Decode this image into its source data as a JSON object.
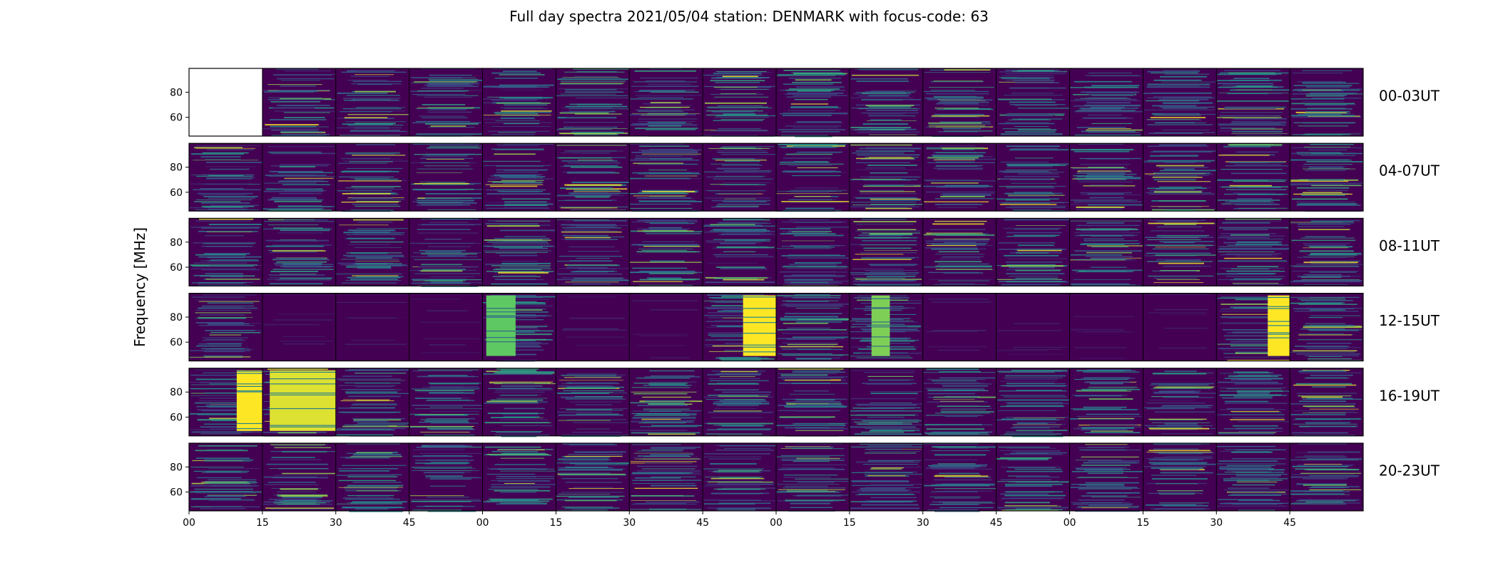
{
  "chart_data": {
    "type": "heatmap",
    "title": "Full day spectra 2021/05/04 station: DENMARK with focus-code: 63",
    "ylabel": "Frequency [MHz]",
    "xlabel": "",
    "ylim": [
      45,
      99
    ],
    "y_ticks": [
      "60",
      "80"
    ],
    "x_tick_labels": [
      "00",
      "15",
      "30",
      "45",
      "00",
      "15",
      "30",
      "45",
      "00",
      "15",
      "30",
      "45",
      "00",
      "15",
      "30",
      "45"
    ],
    "panels_per_row": 16,
    "panel_minutes": 15,
    "colormap": [
      "#440154",
      "#3b528b",
      "#21918c",
      "#5ec962",
      "#fde725"
    ],
    "rows": [
      {
        "label": "00-03UT",
        "empty_panels": [
          0
        ]
      },
      {
        "label": "04-07UT",
        "empty_panels": []
      },
      {
        "label": "08-11UT",
        "empty_panels": []
      },
      {
        "label": "12-15UT",
        "empty_panels": []
      },
      {
        "label": "16-19UT",
        "empty_panels": []
      },
      {
        "label": "20-23UT",
        "empty_panels": []
      }
    ],
    "bursts": [
      {
        "row": 3,
        "panel": 4,
        "start": 0.05,
        "end": 0.45,
        "intensity": 0.75
      },
      {
        "row": 3,
        "panel": 7,
        "start": 0.55,
        "end": 1.0,
        "intensity": 1.0
      },
      {
        "row": 3,
        "panel": 9,
        "start": 0.3,
        "end": 0.55,
        "intensity": 0.8
      },
      {
        "row": 3,
        "panel": 14,
        "start": 0.7,
        "end": 1.0,
        "intensity": 1.0
      },
      {
        "row": 4,
        "panel": 0,
        "start": 0.65,
        "end": 1.0,
        "intensity": 1.0
      },
      {
        "row": 4,
        "panel": 1,
        "start": 0.1,
        "end": 1.0,
        "intensity": 0.95
      }
    ],
    "quiet_panels": [
      {
        "row": 3,
        "panels": [
          1,
          2,
          3,
          5,
          6,
          10,
          11,
          12,
          13
        ]
      }
    ]
  }
}
